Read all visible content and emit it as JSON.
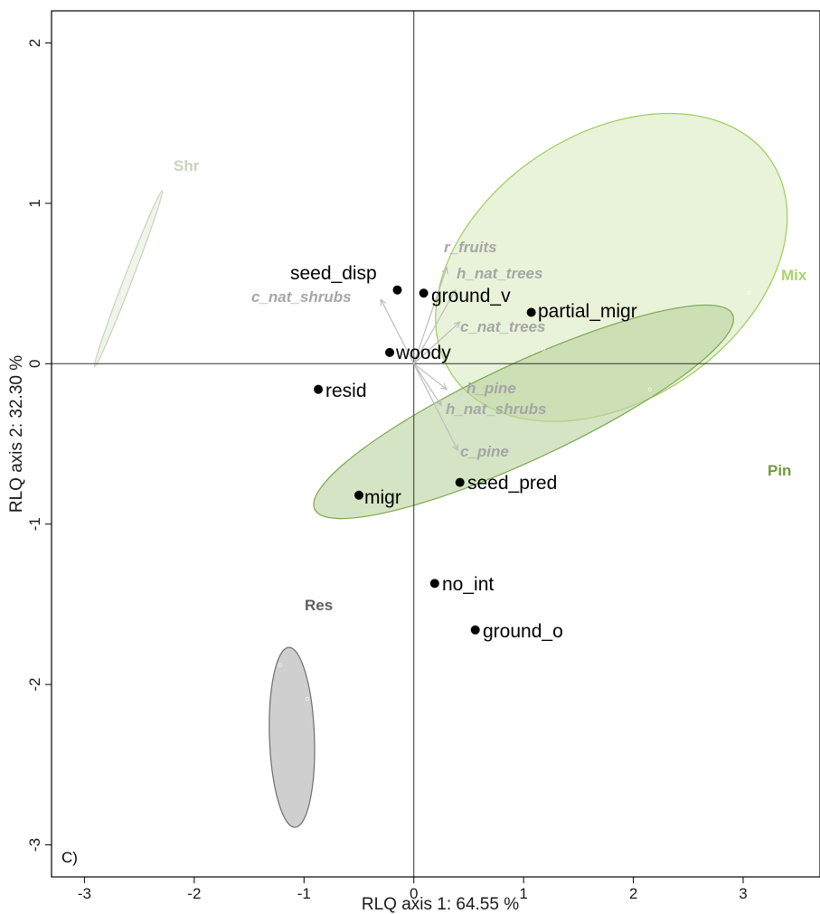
{
  "chart_data": {
    "type": "scatter",
    "title": "",
    "panel_label": "C)",
    "xlabel": "RLQ axis 1: 64.55  %",
    "ylabel": "RLQ axis 2: 32.30  %",
    "xlim": [
      -3.3,
      3.7
    ],
    "ylim": [
      -3.2,
      2.2
    ],
    "x_ticks": [
      -3,
      -2,
      -1,
      0,
      1,
      2,
      3
    ],
    "y_ticks": [
      -3,
      -2,
      -1,
      0,
      1,
      2
    ],
    "grid": false,
    "reference_lines": [
      0,
      0
    ],
    "species_points": [
      {
        "label": "seed_disp",
        "x": -0.15,
        "y": 0.46
      },
      {
        "label": "ground_v",
        "x": 0.09,
        "y": 0.44
      },
      {
        "label": "partial_migr",
        "x": 1.07,
        "y": 0.32
      },
      {
        "label": "woody",
        "x": -0.22,
        "y": 0.07
      },
      {
        "label": "resid",
        "x": -0.87,
        "y": -0.16
      },
      {
        "label": "migr",
        "x": -0.5,
        "y": -0.82
      },
      {
        "label": "seed_pred",
        "x": 0.42,
        "y": -0.74
      },
      {
        "label": "no_int",
        "x": 0.19,
        "y": -1.37
      },
      {
        "label": "ground_o",
        "x": 0.56,
        "y": -1.66
      }
    ],
    "environment_arrows": [
      {
        "label": "r_fruits",
        "x": 0.3,
        "y": 0.6
      },
      {
        "label": "h_nat_trees",
        "x": 0.38,
        "y": 0.46
      },
      {
        "label": "c_nat_shrubs",
        "x": -0.3,
        "y": 0.4
      },
      {
        "label": "c_nat_trees",
        "x": 0.42,
        "y": 0.26
      },
      {
        "label": "h_pine",
        "x": 0.3,
        "y": -0.16
      },
      {
        "label": "h_nat_shrubs",
        "x": 0.25,
        "y": -0.26
      },
      {
        "label": "c_pine",
        "x": 0.4,
        "y": -0.54
      }
    ],
    "groups": [
      {
        "label": "Mix",
        "color": "#9dcc5a",
        "fill": "#d9ebc0",
        "center": [
          1.8,
          0.6
        ],
        "points": [
          [
            0.45,
            1.62
          ],
          [
            3.05,
            0.44
          ],
          [
            1.18,
            0.09
          ]
        ]
      },
      {
        "label": "Pin",
        "color": "#7aa84e",
        "fill": "#b9d29c",
        "center": [
          1.0,
          -0.3
        ],
        "points": [
          [
            2.15,
            -0.16
          ],
          [
            2.18,
            -0.67
          ]
        ]
      },
      {
        "label": "Shr",
        "color": "#c9d3bb",
        "fill": "#e6ecdd",
        "center": [
          -2.6,
          0.53
        ],
        "points": []
      },
      {
        "label": "Res",
        "color": "#6e6e6e",
        "fill": "#cccccc",
        "center": [
          -1.11,
          -2.33
        ],
        "points": [
          [
            -1.22,
            -1.88
          ],
          [
            -0.97,
            -2.09
          ],
          [
            -1.22,
            -2.93
          ]
        ]
      }
    ]
  }
}
